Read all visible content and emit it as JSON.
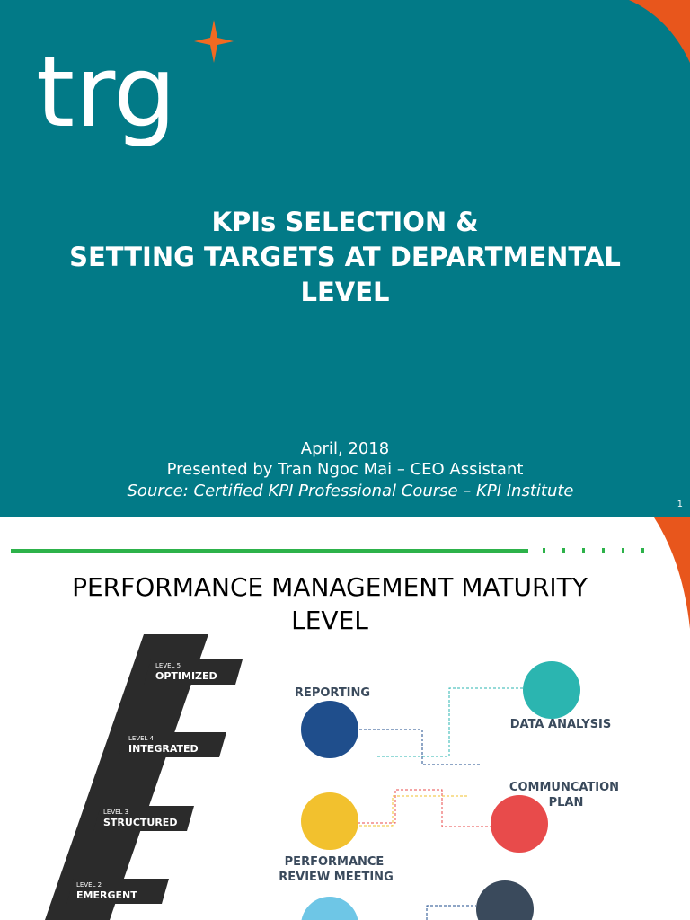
{
  "slides": [
    {
      "logo": "trg",
      "title_lines": [
        "KPIs SELECTION &",
        "SETTING TARGETS AT DEPARTMENTAL",
        "LEVEL"
      ],
      "date": "April, 2018",
      "presenter": "Presented by Tran Ngoc Mai – CEO Assistant",
      "source": "Source: Certified KPI Professional Course – KPI Institute",
      "page_number": "1"
    },
    {
      "title_lines": [
        "PERFORMANCE MANAGEMENT MATURITY",
        "LEVEL"
      ],
      "levels": [
        {
          "label": "LEVEL 5",
          "name": "OPTIMIZED"
        },
        {
          "label": "LEVEL 4",
          "name": "INTEGRATED"
        },
        {
          "label": "LEVEL 3",
          "name": "STRUCTURED"
        },
        {
          "label": "LEVEL 2",
          "name": "EMERGENT"
        }
      ],
      "nodes": [
        {
          "lines": [
            "REPORTING"
          ]
        },
        {
          "lines": [
            "DATA ANALYSIS"
          ]
        },
        {
          "lines": [
            "COMMUNCATION",
            "PLAN"
          ]
        },
        {
          "lines": [
            "PERFORMANCE",
            "REVIEW MEETING"
          ]
        }
      ]
    }
  ]
}
